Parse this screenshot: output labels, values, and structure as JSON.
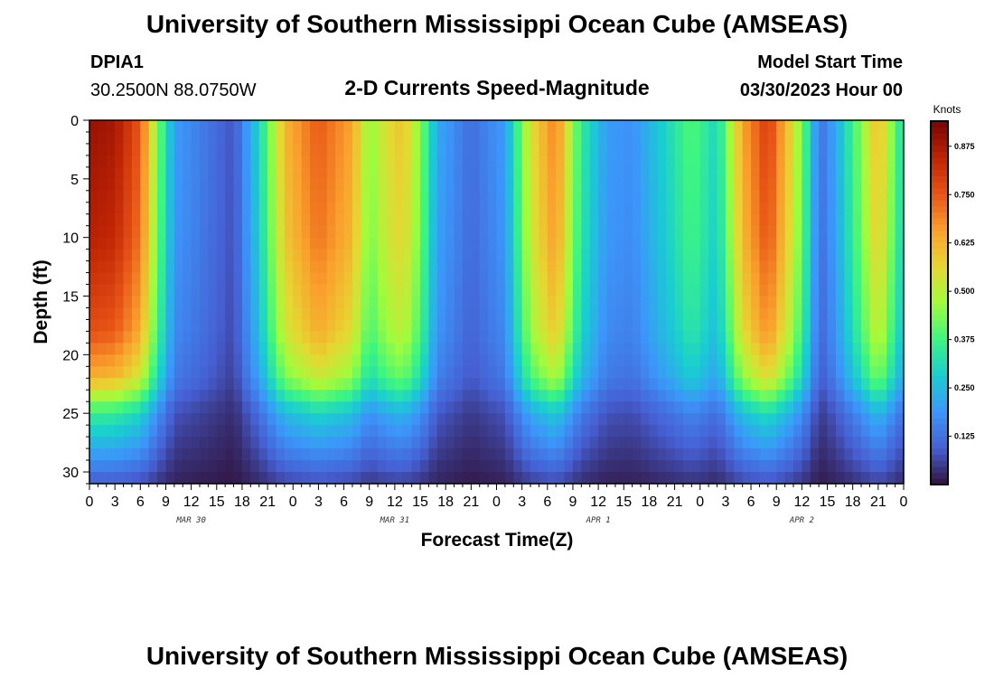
{
  "page": {
    "title": "University of Southern Mississippi Ocean Cube (AMSEAS)",
    "footer_title": "University of Southern Mississippi Ocean Cube (AMSEAS)"
  },
  "header": {
    "station": "DPIA1",
    "location": "30.2500N  88.0750W",
    "plot_title": "2-D Currents Speed-Magnitude",
    "model_start_label": "Model Start Time",
    "model_start_value": "03/30/2023 Hour 00"
  },
  "chart_data": {
    "type": "heatmap",
    "title": "2-D Currents Speed-Magnitude",
    "xlabel": "Forecast Time(Z)",
    "ylabel": "Depth (ft)",
    "x_range_hours": [
      0,
      96
    ],
    "y_range_ft": [
      0,
      31
    ],
    "x_ticks_hours": [
      0,
      3,
      6,
      9,
      12,
      15,
      18,
      21,
      24,
      27,
      30,
      33,
      36,
      39,
      42,
      45,
      48,
      51,
      54,
      57,
      60,
      63,
      66,
      69,
      72,
      75,
      78,
      81,
      84,
      87,
      90,
      93,
      96
    ],
    "x_tick_labels": [
      "0",
      "3",
      "6",
      "9",
      "12",
      "15",
      "18",
      "21",
      "0",
      "3",
      "6",
      "9",
      "12",
      "15",
      "18",
      "21",
      "0",
      "3",
      "6",
      "9",
      "12",
      "15",
      "18",
      "21",
      "0",
      "3",
      "6",
      "9",
      "12",
      "15",
      "18",
      "21",
      "0"
    ],
    "y_ticks": [
      0,
      5,
      10,
      15,
      20,
      25,
      30
    ],
    "y_tick_labels": [
      "0",
      "5",
      "10",
      "15",
      "20",
      "25",
      "30"
    ],
    "date_labels": [
      {
        "text": "MAR 30",
        "hour": 12
      },
      {
        "text": "MAR 31",
        "hour": 36
      },
      {
        "text": "APR 1",
        "hour": 60
      },
      {
        "text": "APR 2",
        "hour": 84
      }
    ],
    "colorbar": {
      "title": "Knots",
      "min": 0,
      "max": 0.94,
      "ticks": [
        0.125,
        0.25,
        0.375,
        0.5,
        0.625,
        0.75,
        0.875
      ],
      "tick_labels": [
        "0.125",
        "0.250",
        "0.375",
        "0.500",
        "0.625",
        "0.750",
        "0.875"
      ],
      "colormap": "turbo"
    },
    "grid": false,
    "approx_field": {
      "units": "knots",
      "time_profile": [
        {
          "h": 0,
          "v": 0.9
        },
        {
          "h": 3,
          "v": 0.88
        },
        {
          "h": 6,
          "v": 0.75
        },
        {
          "h": 8,
          "v": 0.45
        },
        {
          "h": 10,
          "v": 0.2
        },
        {
          "h": 13,
          "v": 0.15
        },
        {
          "h": 17,
          "v": 0.08
        },
        {
          "h": 20,
          "v": 0.3
        },
        {
          "h": 23,
          "v": 0.62
        },
        {
          "h": 27,
          "v": 0.75
        },
        {
          "h": 31,
          "v": 0.65
        },
        {
          "h": 33,
          "v": 0.45
        },
        {
          "h": 35,
          "v": 0.55
        },
        {
          "h": 37,
          "v": 0.6
        },
        {
          "h": 39,
          "v": 0.45
        },
        {
          "h": 41,
          "v": 0.22
        },
        {
          "h": 45,
          "v": 0.12
        },
        {
          "h": 49,
          "v": 0.2
        },
        {
          "h": 52,
          "v": 0.55
        },
        {
          "h": 55,
          "v": 0.7
        },
        {
          "h": 58,
          "v": 0.35
        },
        {
          "h": 61,
          "v": 0.2
        },
        {
          "h": 64,
          "v": 0.18
        },
        {
          "h": 68,
          "v": 0.3
        },
        {
          "h": 71,
          "v": 0.4
        },
        {
          "h": 74,
          "v": 0.3
        },
        {
          "h": 77,
          "v": 0.65
        },
        {
          "h": 80,
          "v": 0.8
        },
        {
          "h": 83,
          "v": 0.55
        },
        {
          "h": 85,
          "v": 0.3
        },
        {
          "h": 86,
          "v": 0.12
        },
        {
          "h": 88,
          "v": 0.22
        },
        {
          "h": 91,
          "v": 0.45
        },
        {
          "h": 93,
          "v": 0.62
        },
        {
          "h": 96,
          "v": 0.3
        }
      ],
      "depth_profile": [
        {
          "d": 0,
          "f": 1.0
        },
        {
          "d": 10,
          "f": 0.95
        },
        {
          "d": 18,
          "f": 0.85
        },
        {
          "d": 22,
          "f": 0.7
        },
        {
          "d": 25,
          "f": 0.4
        },
        {
          "d": 28,
          "f": 0.25
        },
        {
          "d": 31,
          "f": 0.1
        }
      ]
    }
  }
}
